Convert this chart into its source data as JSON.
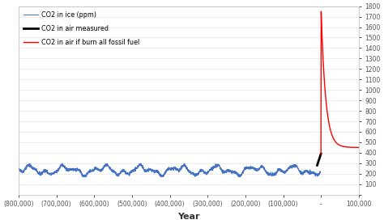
{
  "title": "",
  "xlabel": "Year",
  "ylabel": "",
  "xlim": [
    -800000,
    100000
  ],
  "ylim": [
    0,
    1800
  ],
  "yticks": [
    0,
    100,
    200,
    300,
    400,
    500,
    600,
    700,
    800,
    900,
    1000,
    1100,
    1200,
    1300,
    1400,
    1500,
    1600,
    1700,
    1800
  ],
  "xticks": [
    -800000,
    -700000,
    -600000,
    -500000,
    -400000,
    -300000,
    -200000,
    -100000,
    0,
    100000
  ],
  "xtick_labels": [
    "(800,000)",
    "(700,000)",
    "(600,000)",
    "(500,000)",
    "(400,000)",
    "(300,000)",
    "(200,000)",
    "(100,000)",
    "-",
    "100,000"
  ],
  "co2_ice_color": "#4472C4",
  "co2_air_color": "#000000",
  "co2_fossil_color": "#FF0000",
  "legend_labels": [
    "CO2 in ice (ppm)",
    "CO2 in air measured",
    "CO2 in air if burn all fossil fuel"
  ],
  "background_color": "#FFFFFF",
  "grid_color": "#D0D0D0",
  "ice_amplitude": 30,
  "ice_base": 230,
  "ice_noise_std": 7,
  "ice_period1": 100000,
  "ice_period2": 41000,
  "air_start_x": -10000,
  "air_end_x": 0,
  "air_start_y": 280,
  "air_end_y": 390,
  "fossil_peak_y": 1750,
  "fossil_peak_x": 500,
  "fossil_end_y": 450,
  "fossil_end_x": 100000,
  "fossil_decay": 12000
}
